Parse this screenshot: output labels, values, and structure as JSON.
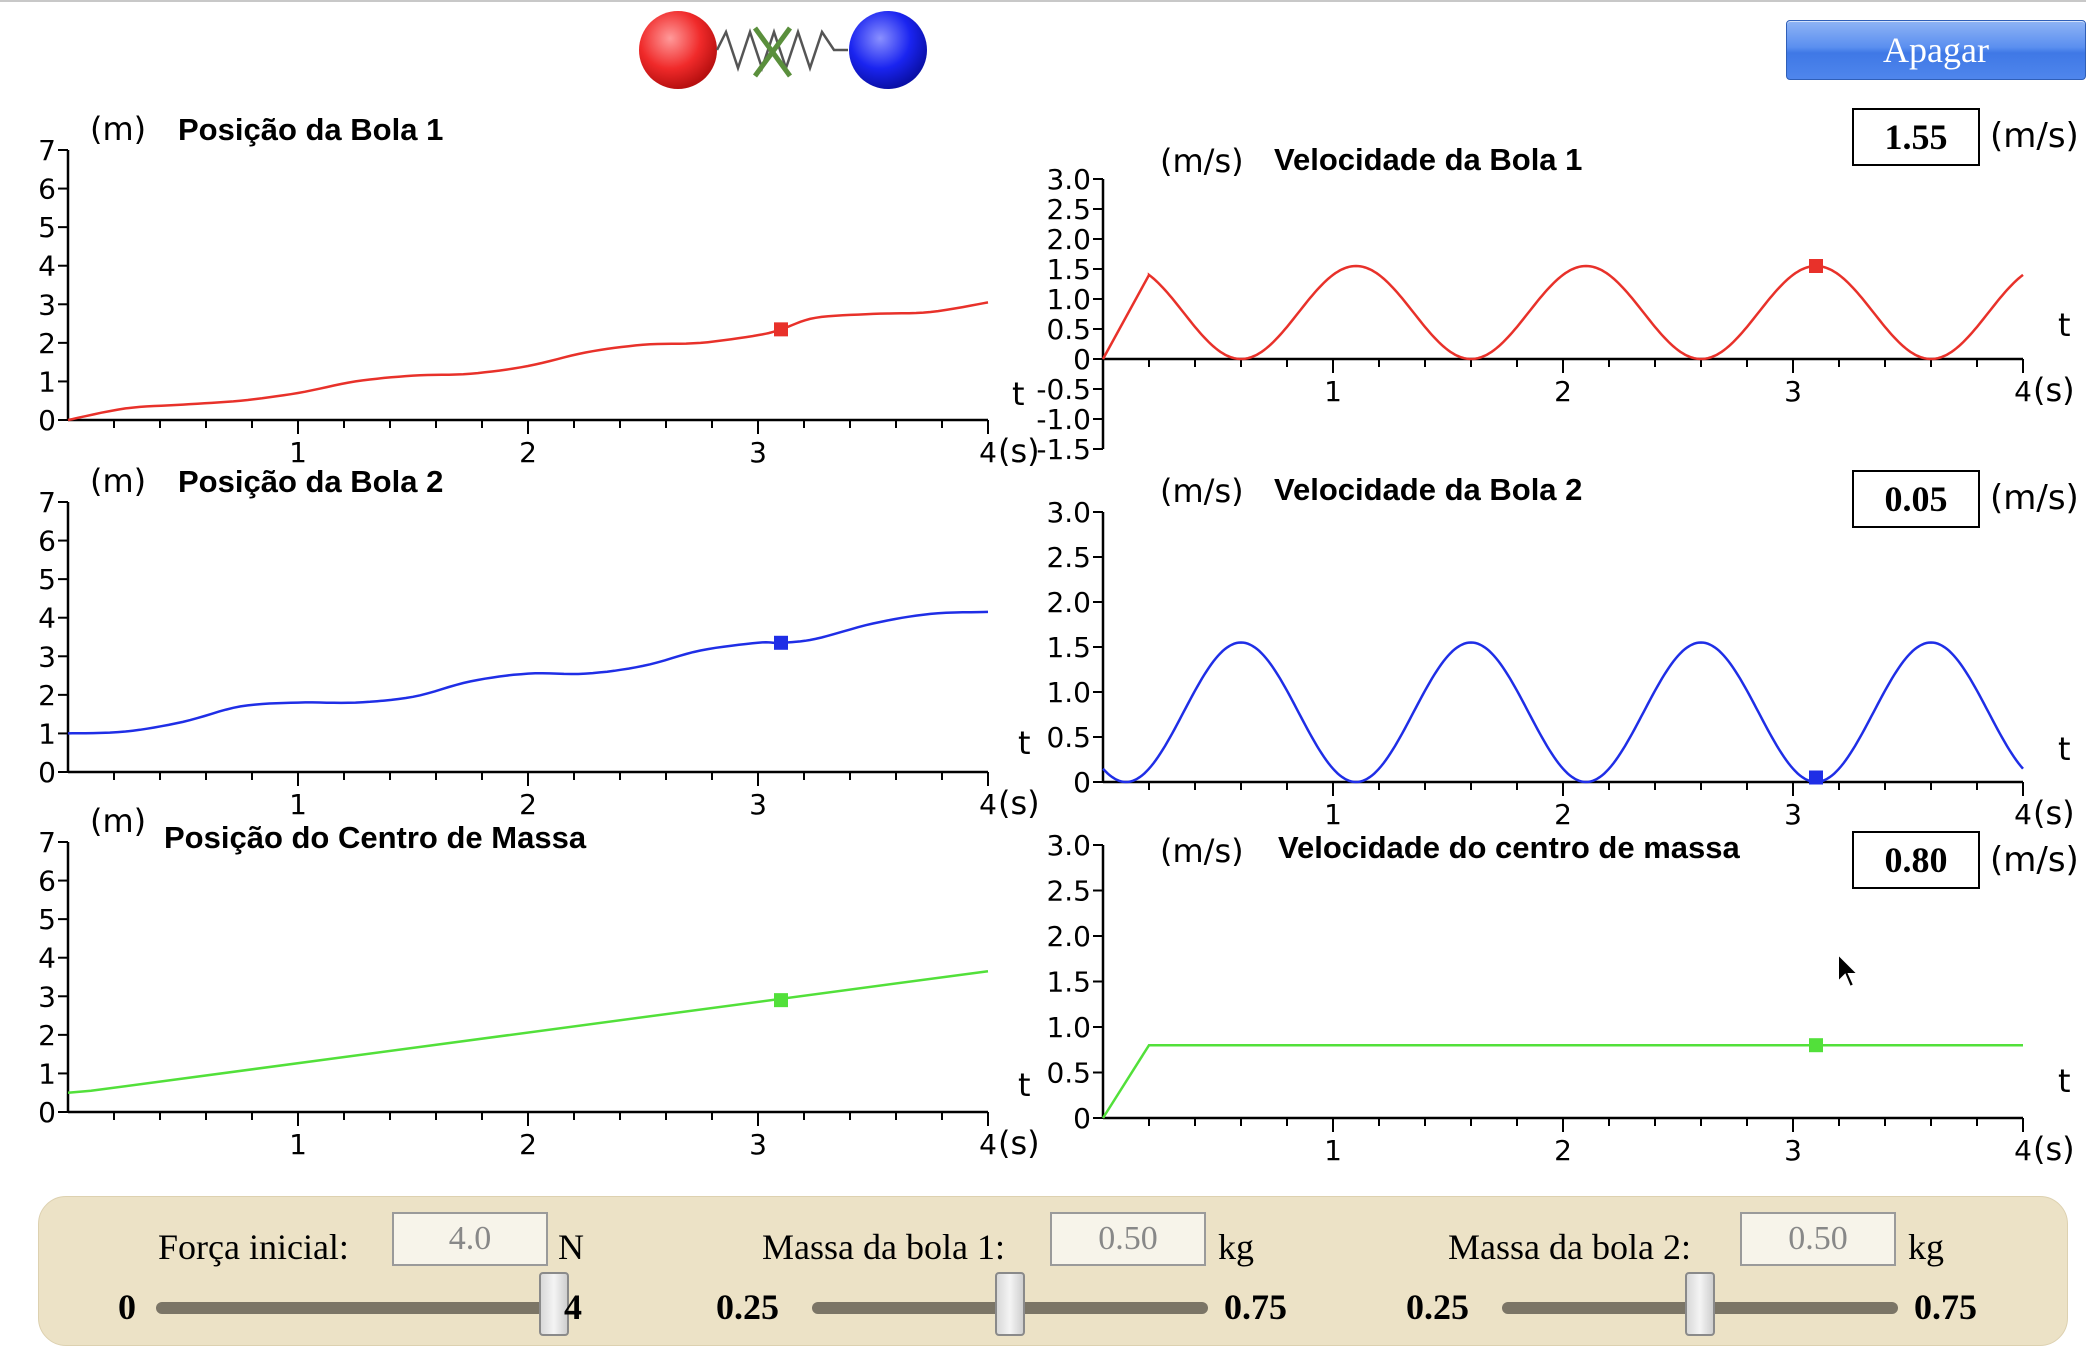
{
  "toolbar": {
    "clear_label": "Apagar"
  },
  "units": {
    "m": "(m)",
    "ms": "(m/s)",
    "s": "(s)",
    "t": "t"
  },
  "pos_ticks": [
    "0",
    "1",
    "2",
    "3",
    "4",
    "5",
    "6",
    "7"
  ],
  "vel_ticks_full": [
    "-1.5",
    "-1.0",
    "-0.5",
    "0",
    "0.5",
    "1.0",
    "1.5",
    "2.0",
    "2.5",
    "3.0"
  ],
  "vel_ticks_pos": [
    "0",
    "0.5",
    "1.0",
    "1.5",
    "2.0",
    "2.5",
    "3.0"
  ],
  "time_ticks": [
    "1",
    "2",
    "3",
    "4"
  ],
  "graphs": {
    "pos1": {
      "title": "Posição da Bola 1",
      "color": "#e8312a"
    },
    "pos2": {
      "title": "Posição da Bola 2",
      "color": "#1f2ee6"
    },
    "pos3": {
      "title": "Posição do Centro de Massa",
      "color": "#52e03a"
    },
    "vel1": {
      "title": "Velocidade da Bola 1",
      "color": "#e8312a",
      "value": "1.55"
    },
    "vel2": {
      "title": "Velocidade da Bola 2",
      "color": "#1f2ee6",
      "value": "0.05"
    },
    "vel3": {
      "title": "Velocidade do centro de massa",
      "color": "#52e03a",
      "value": "0.80"
    }
  },
  "chart_data": [
    {
      "type": "line",
      "title": "Posição da Bola 1",
      "ylabel": "(m)",
      "xlabel": "(s)",
      "xlim": [
        0,
        4
      ],
      "ylim": [
        0,
        7
      ],
      "x": [
        0,
        0.25,
        0.5,
        0.75,
        1,
        1.25,
        1.5,
        1.75,
        2,
        2.25,
        2.5,
        2.75,
        3,
        3.1,
        3.25,
        3.5,
        3.75,
        4
      ],
      "y": [
        0,
        0.3,
        0.4,
        0.5,
        0.7,
        1.0,
        1.15,
        1.2,
        1.4,
        1.75,
        1.95,
        2.0,
        2.2,
        2.35,
        2.65,
        2.75,
        2.8,
        3.05
      ],
      "marker": [
        3.1,
        2.35
      ]
    },
    {
      "type": "line",
      "title": "Posição da Bola 2",
      "ylabel": "(m)",
      "xlabel": "(s)",
      "xlim": [
        0,
        4
      ],
      "ylim": [
        0,
        7
      ],
      "x": [
        0,
        0.25,
        0.5,
        0.75,
        1,
        1.25,
        1.5,
        1.75,
        2,
        2.25,
        2.5,
        2.75,
        3,
        3.1,
        3.25,
        3.5,
        3.75,
        4
      ],
      "y": [
        1.0,
        1.05,
        1.3,
        1.7,
        1.8,
        1.8,
        1.95,
        2.35,
        2.55,
        2.55,
        2.75,
        3.15,
        3.35,
        3.35,
        3.45,
        3.85,
        4.1,
        4.15
      ],
      "marker": [
        3.1,
        3.35
      ]
    },
    {
      "type": "line",
      "title": "Posição do Centro de Massa",
      "ylabel": "(m)",
      "xlabel": "(s)",
      "xlim": [
        0,
        4
      ],
      "ylim": [
        0,
        7
      ],
      "x": [
        0,
        0.1,
        4
      ],
      "y": [
        0.5,
        0.55,
        3.65
      ],
      "marker": [
        3.1,
        2.9
      ]
    },
    {
      "type": "line",
      "title": "Velocidade da Bola 1",
      "ylabel": "(m/s)",
      "xlabel": "(s)",
      "xlim": [
        0,
        4
      ],
      "ylim": [
        -1.5,
        3.0
      ],
      "x_start": 0.2,
      "y_start_ramp": [
        [
          0,
          0
        ],
        [
          0.2,
          1.4
        ]
      ],
      "mean": 0.775,
      "amplitude": 0.775,
      "period": 1.0,
      "peak_at": 0.1,
      "marker": [
        3.1,
        1.55
      ]
    },
    {
      "type": "line",
      "title": "Velocidade da Bola 2",
      "ylabel": "(m/s)",
      "xlabel": "(s)",
      "xlim": [
        0,
        4
      ],
      "ylim": [
        0,
        3.0
      ],
      "mean": 0.775,
      "amplitude": 0.775,
      "period": 1.0,
      "peak_at": 0.6,
      "marker": [
        3.1,
        0.05
      ]
    },
    {
      "type": "line",
      "title": "Velocidade do centro de massa",
      "ylabel": "(m/s)",
      "xlabel": "(s)",
      "xlim": [
        0,
        4
      ],
      "ylim": [
        0,
        3.0
      ],
      "x": [
        0,
        0.2,
        4
      ],
      "y": [
        0,
        0.8,
        0.8
      ],
      "marker": [
        3.1,
        0.8
      ]
    }
  ],
  "controls": [
    {
      "label": "Força inicial:",
      "value": "4.0",
      "unit": "N",
      "min": "0",
      "max": "4",
      "fraction": 1.0
    },
    {
      "label": "Massa da bola 1:",
      "value": "0.50",
      "unit": "kg",
      "min": "0.25",
      "max": "0.75",
      "fraction": 0.5
    },
    {
      "label": "Massa da bola 2:",
      "value": "0.50",
      "unit": "kg",
      "min": "0.25",
      "max": "0.75",
      "fraction": 0.5
    }
  ]
}
